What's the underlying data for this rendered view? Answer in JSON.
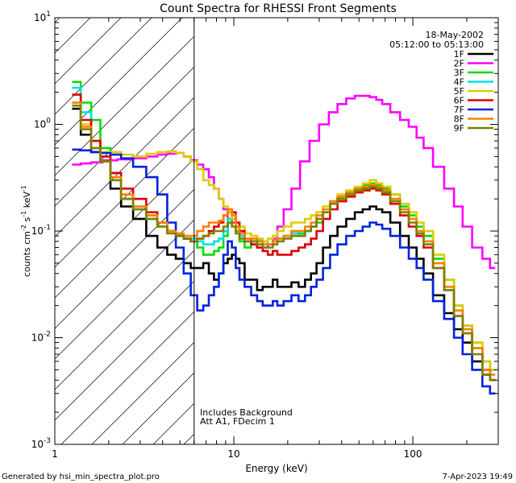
{
  "chart_data": {
    "type": "line",
    "title": "Count Spectra for RHESSI Front Segments",
    "xlabel": "Energy (keV)",
    "ylabel": {
      "base": "counts cm",
      "exp1": "-2",
      "mid": " s",
      "exp2": "-1",
      "tail": " keV",
      "exp3": "-1"
    },
    "xscale": "log",
    "yscale": "log",
    "xlim": [
      1,
      300
    ],
    "ylim": [
      0.001,
      10
    ],
    "x_ticks": [
      {
        "value": 1,
        "label": "1"
      },
      {
        "value": 10,
        "label": "10"
      },
      {
        "value": 100,
        "label": "100"
      }
    ],
    "y_ticks": [
      {
        "value": 0.001,
        "base": "10",
        "exp": "-3"
      },
      {
        "value": 0.01,
        "base": "10",
        "exp": "-2"
      },
      {
        "value": 0.1,
        "base": "10",
        "exp": "-1"
      },
      {
        "value": 1,
        "base": "10",
        "exp": "0"
      },
      {
        "value": 10,
        "base": "10",
        "exp": "1"
      }
    ],
    "hatched_region": {
      "x_from": 1,
      "x_to": 6,
      "cutoff_energy": 6
    },
    "legend_position": "top-right",
    "date": "18-May-2002",
    "time_range": "05:12:00 to 05:13:00",
    "annotations": [
      "Includes Background",
      "Att A1, FDecim 1"
    ],
    "series": [
      {
        "name": "1F",
        "color": "#000000",
        "x": [
          1.3,
          1.5,
          1.7,
          1.9,
          2.2,
          2.5,
          3.0,
          3.5,
          4.0,
          4.5,
          5.0,
          5.5,
          6.0,
          6.5,
          7.0,
          7.5,
          8.0,
          8.5,
          9.0,
          9.5,
          10,
          10.5,
          11,
          12,
          13,
          14,
          15,
          16,
          17,
          18,
          20,
          22,
          24,
          26,
          28,
          30,
          33,
          36,
          40,
          45,
          50,
          55,
          60,
          65,
          70,
          80,
          90,
          100,
          110,
          120,
          140,
          160,
          180,
          200,
          230,
          260,
          280
        ],
        "values": [
          1.4,
          0.8,
          0.55,
          0.45,
          0.25,
          0.17,
          0.13,
          0.09,
          0.07,
          0.06,
          0.055,
          0.05,
          0.045,
          0.045,
          0.05,
          0.04,
          0.035,
          0.04,
          0.05,
          0.055,
          0.06,
          0.055,
          0.05,
          0.035,
          0.035,
          0.028,
          0.03,
          0.03,
          0.035,
          0.03,
          0.03,
          0.033,
          0.03,
          0.035,
          0.04,
          0.05,
          0.07,
          0.09,
          0.11,
          0.13,
          0.15,
          0.16,
          0.17,
          0.16,
          0.15,
          0.12,
          0.09,
          0.07,
          0.055,
          0.04,
          0.025,
          0.017,
          0.012,
          0.009,
          0.006,
          0.0045,
          0.004
        ]
      },
      {
        "name": "2F",
        "color": "#ff00ff",
        "x": [
          1.3,
          1.5,
          1.7,
          2.0,
          2.5,
          3.0,
          3.5,
          4.0,
          4.5,
          5.0,
          5.5,
          6.0,
          6.5,
          7.0,
          7.5,
          8.0,
          8.5,
          9.0,
          9.5,
          10,
          10.5,
          11,
          12,
          13,
          14,
          15,
          16,
          17,
          18,
          20,
          22,
          25,
          28,
          32,
          36,
          40,
          45,
          50,
          55,
          60,
          65,
          70,
          80,
          90,
          100,
          110,
          120,
          140,
          160,
          180,
          200,
          230,
          260,
          280
        ],
        "values": [
          0.42,
          0.43,
          0.44,
          0.46,
          0.47,
          0.48,
          0.5,
          0.52,
          0.53,
          0.54,
          0.5,
          0.46,
          0.42,
          0.38,
          0.32,
          0.25,
          0.2,
          0.16,
          0.13,
          0.12,
          0.11,
          0.1,
          0.085,
          0.075,
          0.07,
          0.07,
          0.075,
          0.085,
          0.11,
          0.16,
          0.25,
          0.45,
          0.7,
          1.0,
          1.3,
          1.55,
          1.75,
          1.85,
          1.85,
          1.8,
          1.7,
          1.55,
          1.3,
          1.1,
          0.95,
          0.75,
          0.6,
          0.4,
          0.25,
          0.17,
          0.11,
          0.07,
          0.055,
          0.045
        ]
      },
      {
        "name": "3F",
        "color": "#00dd00",
        "x": [
          1.3,
          1.5,
          1.7,
          1.9,
          2.2,
          2.5,
          3.0,
          3.5,
          4.0,
          4.5,
          5.0,
          5.5,
          6.0,
          6.5,
          7.0,
          7.5,
          8.0,
          8.5,
          9.0,
          9.5,
          10,
          10.5,
          11,
          12,
          13,
          14,
          15,
          16,
          17,
          18,
          20,
          22,
          24,
          26,
          28,
          30,
          33,
          36,
          40,
          45,
          50,
          55,
          60,
          65,
          70,
          80,
          90,
          100,
          110,
          120,
          140,
          160,
          180,
          200,
          230,
          260,
          280
        ],
        "values": [
          2.5,
          1.6,
          1.1,
          0.6,
          0.35,
          0.2,
          0.16,
          0.13,
          0.11,
          0.1,
          0.09,
          0.085,
          0.08,
          0.07,
          0.06,
          0.06,
          0.065,
          0.07,
          0.09,
          0.12,
          0.13,
          0.1,
          0.08,
          0.07,
          0.075,
          0.08,
          0.08,
          0.075,
          0.08,
          0.085,
          0.09,
          0.1,
          0.095,
          0.1,
          0.11,
          0.12,
          0.15,
          0.18,
          0.2,
          0.23,
          0.25,
          0.27,
          0.28,
          0.27,
          0.25,
          0.22,
          0.17,
          0.14,
          0.11,
          0.09,
          0.055,
          0.035,
          0.02,
          0.013,
          0.009,
          0.006,
          0.005
        ]
      },
      {
        "name": "4F",
        "color": "#00e0e0",
        "x": [
          1.3,
          1.5,
          1.7,
          1.9,
          2.2,
          2.5,
          3.0,
          3.5,
          4.0,
          4.5,
          5.0,
          5.5,
          6.0,
          6.5,
          7.0,
          7.5,
          8.0,
          8.5,
          9.0,
          9.5,
          10,
          10.5,
          11,
          12,
          13,
          14,
          15,
          16,
          17,
          18,
          20,
          22,
          24,
          26,
          28,
          30,
          33,
          36,
          40,
          45,
          50,
          55,
          60,
          65,
          70,
          80,
          90,
          100,
          110,
          120,
          140,
          160,
          180,
          200,
          230,
          260,
          280
        ],
        "values": [
          2.2,
          1.3,
          0.7,
          0.45,
          0.3,
          0.2,
          0.17,
          0.14,
          0.12,
          0.1,
          0.09,
          0.085,
          0.085,
          0.08,
          0.075,
          0.075,
          0.08,
          0.085,
          0.1,
          0.13,
          0.14,
          0.11,
          0.09,
          0.08,
          0.08,
          0.082,
          0.08,
          0.075,
          0.08,
          0.085,
          0.09,
          0.095,
          0.09,
          0.1,
          0.11,
          0.13,
          0.15,
          0.18,
          0.21,
          0.23,
          0.25,
          0.26,
          0.27,
          0.26,
          0.24,
          0.2,
          0.16,
          0.13,
          0.1,
          0.08,
          0.05,
          0.03,
          0.018,
          0.012,
          0.008,
          0.006,
          0.005
        ]
      },
      {
        "name": "5F",
        "color": "#ddcc00",
        "x": [
          1.3,
          1.5,
          1.7,
          1.9,
          2.2,
          2.5,
          3.0,
          3.5,
          4.0,
          4.5,
          5.0,
          5.5,
          6.0,
          6.5,
          7.0,
          7.5,
          8.0,
          8.5,
          9.0,
          9.5,
          10,
          10.5,
          11,
          12,
          13,
          14,
          15,
          16,
          17,
          18,
          20,
          22,
          24,
          26,
          28,
          30,
          33,
          36,
          40,
          45,
          50,
          55,
          60,
          65,
          70,
          80,
          90,
          100,
          110,
          120,
          140,
          160,
          180,
          200,
          230,
          260,
          280
        ],
        "values": [
          1.6,
          1.0,
          0.7,
          0.55,
          0.55,
          0.52,
          0.5,
          0.53,
          0.55,
          0.56,
          0.54,
          0.5,
          0.45,
          0.38,
          0.3,
          0.27,
          0.25,
          0.2,
          0.17,
          0.15,
          0.13,
          0.12,
          0.11,
          0.095,
          0.09,
          0.085,
          0.08,
          0.085,
          0.09,
          0.1,
          0.11,
          0.12,
          0.12,
          0.13,
          0.14,
          0.15,
          0.17,
          0.19,
          0.22,
          0.24,
          0.26,
          0.28,
          0.3,
          0.28,
          0.26,
          0.22,
          0.18,
          0.15,
          0.12,
          0.1,
          0.06,
          0.035,
          0.02,
          0.013,
          0.009,
          0.006,
          0.005
        ]
      },
      {
        "name": "6F",
        "color": "#dd0000",
        "x": [
          1.3,
          1.5,
          1.7,
          1.9,
          2.2,
          2.5,
          3.0,
          3.5,
          4.0,
          4.5,
          5.0,
          5.5,
          6.0,
          6.5,
          7.0,
          7.5,
          8.0,
          8.5,
          9.0,
          9.5,
          10,
          10.5,
          11,
          12,
          13,
          14,
          15,
          16,
          17,
          18,
          20,
          22,
          24,
          26,
          28,
          30,
          33,
          36,
          40,
          45,
          50,
          55,
          60,
          65,
          70,
          80,
          90,
          100,
          110,
          120,
          140,
          160,
          180,
          200,
          230,
          260,
          280
        ],
        "values": [
          1.9,
          1.1,
          0.7,
          0.5,
          0.35,
          0.25,
          0.2,
          0.15,
          0.12,
          0.1,
          0.09,
          0.085,
          0.08,
          0.085,
          0.09,
          0.1,
          0.11,
          0.12,
          0.14,
          0.16,
          0.15,
          0.12,
          0.1,
          0.08,
          0.075,
          0.07,
          0.065,
          0.06,
          0.065,
          0.06,
          0.06,
          0.065,
          0.07,
          0.075,
          0.085,
          0.1,
          0.13,
          0.16,
          0.19,
          0.21,
          0.23,
          0.24,
          0.25,
          0.24,
          0.22,
          0.18,
          0.14,
          0.11,
          0.09,
          0.07,
          0.045,
          0.028,
          0.016,
          0.011,
          0.008,
          0.005,
          0.004
        ]
      },
      {
        "name": "7F",
        "color": "#0022dd",
        "x": [
          1.3,
          1.5,
          1.7,
          1.9,
          2.2,
          2.5,
          3.0,
          3.5,
          4.0,
          4.5,
          5.0,
          5.5,
          6.0,
          6.5,
          7.0,
          7.5,
          8.0,
          8.5,
          9.0,
          9.5,
          10,
          10.5,
          11,
          12,
          13,
          14,
          15,
          16,
          17,
          18,
          20,
          22,
          24,
          26,
          28,
          30,
          33,
          36,
          40,
          45,
          50,
          55,
          60,
          65,
          70,
          80,
          90,
          100,
          110,
          120,
          140,
          160,
          180,
          200,
          230,
          260,
          280
        ],
        "values": [
          0.58,
          0.57,
          0.55,
          0.54,
          0.52,
          0.48,
          0.4,
          0.32,
          0.22,
          0.12,
          0.07,
          0.04,
          0.025,
          0.018,
          0.02,
          0.025,
          0.03,
          0.04,
          0.06,
          0.08,
          0.07,
          0.045,
          0.035,
          0.03,
          0.025,
          0.022,
          0.02,
          0.02,
          0.022,
          0.02,
          0.022,
          0.025,
          0.022,
          0.025,
          0.03,
          0.035,
          0.045,
          0.06,
          0.075,
          0.09,
          0.1,
          0.11,
          0.12,
          0.115,
          0.105,
          0.09,
          0.07,
          0.055,
          0.045,
          0.035,
          0.022,
          0.015,
          0.01,
          0.007,
          0.005,
          0.0035,
          0.003
        ]
      },
      {
        "name": "8F",
        "color": "#ff8000",
        "x": [
          1.3,
          1.5,
          1.7,
          1.9,
          2.2,
          2.5,
          3.0,
          3.5,
          4.0,
          4.5,
          5.0,
          5.5,
          6.0,
          6.5,
          7.0,
          7.5,
          8.0,
          8.5,
          9.0,
          9.5,
          10,
          10.5,
          11,
          12,
          13,
          14,
          15,
          16,
          17,
          18,
          20,
          22,
          24,
          26,
          28,
          30,
          33,
          36,
          40,
          45,
          50,
          55,
          60,
          65,
          70,
          80,
          90,
          100,
          110,
          120,
          140,
          160,
          180,
          200,
          230,
          260,
          280
        ],
        "values": [
          1.6,
          0.95,
          0.6,
          0.45,
          0.32,
          0.22,
          0.17,
          0.14,
          0.12,
          0.1,
          0.095,
          0.09,
          0.09,
          0.1,
          0.11,
          0.12,
          0.12,
          0.125,
          0.14,
          0.16,
          0.14,
          0.11,
          0.095,
          0.085,
          0.085,
          0.08,
          0.075,
          0.075,
          0.08,
          0.085,
          0.09,
          0.1,
          0.1,
          0.11,
          0.12,
          0.14,
          0.16,
          0.19,
          0.21,
          0.23,
          0.25,
          0.26,
          0.27,
          0.26,
          0.24,
          0.2,
          0.16,
          0.13,
          0.1,
          0.08,
          0.05,
          0.03,
          0.018,
          0.012,
          0.008,
          0.005,
          0.0045
        ]
      },
      {
        "name": "9F",
        "color": "#808000",
        "x": [
          1.3,
          1.5,
          1.7,
          1.9,
          2.2,
          2.5,
          3.0,
          3.5,
          4.0,
          4.5,
          5.0,
          5.5,
          6.0,
          6.5,
          7.0,
          7.5,
          8.0,
          8.5,
          9.0,
          9.5,
          10,
          10.5,
          11,
          12,
          13,
          14,
          15,
          16,
          17,
          18,
          20,
          22,
          24,
          26,
          28,
          30,
          33,
          36,
          40,
          45,
          50,
          55,
          60,
          65,
          70,
          80,
          90,
          100,
          110,
          120,
          140,
          160,
          180,
          200,
          230,
          260,
          280
        ],
        "values": [
          1.5,
          0.9,
          0.6,
          0.45,
          0.3,
          0.2,
          0.16,
          0.13,
          0.11,
          0.095,
          0.09,
          0.085,
          0.08,
          0.085,
          0.09,
          0.095,
          0.1,
          0.1,
          0.11,
          0.12,
          0.11,
          0.095,
          0.085,
          0.08,
          0.08,
          0.075,
          0.07,
          0.07,
          0.075,
          0.08,
          0.085,
          0.09,
          0.09,
          0.1,
          0.11,
          0.13,
          0.15,
          0.18,
          0.2,
          0.22,
          0.24,
          0.25,
          0.26,
          0.25,
          0.23,
          0.19,
          0.15,
          0.12,
          0.095,
          0.075,
          0.045,
          0.028,
          0.016,
          0.011,
          0.007,
          0.0045,
          0.004
        ]
      }
    ]
  },
  "footer": {
    "generated_by": "Generated by hsi_min_spectra_plot.pro",
    "timestamp": "7-Apr-2023 19:49"
  }
}
